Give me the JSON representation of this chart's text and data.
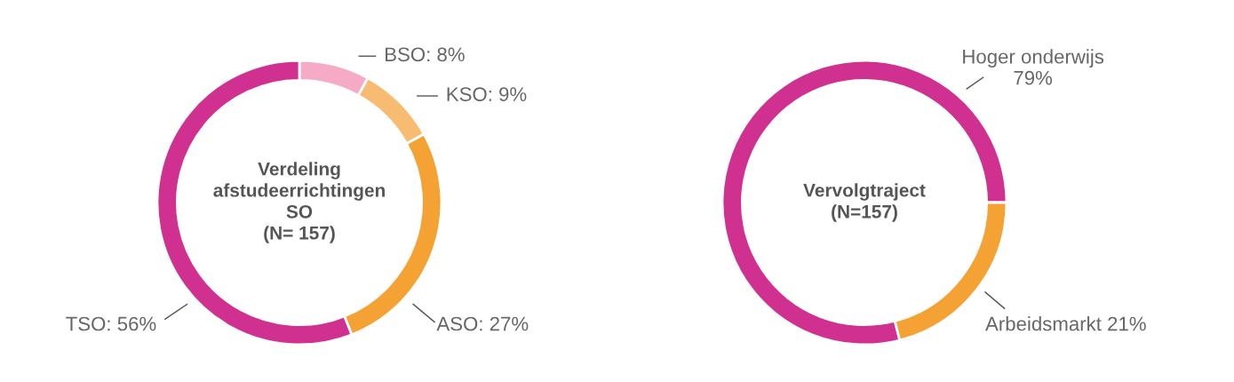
{
  "chart_data": [
    {
      "type": "donut",
      "title": "Verdeling\nafstudeerrichtingen\nSO\n(N= 157)",
      "categories": [
        "BSO",
        "KSO",
        "ASO",
        "TSO"
      ],
      "values": [
        8,
        9,
        27,
        56
      ],
      "colors": [
        "#f5aac6",
        "#f8bb72",
        "#f4a233",
        "#d0308f"
      ],
      "value_labels": [
        "8%",
        "9%",
        "27%",
        "56%"
      ]
    },
    {
      "type": "donut",
      "title": "Vervolgtraject\n(N=157)",
      "categories": [
        "Hoger onderwijs",
        "Arbeidsmarkt"
      ],
      "values": [
        79,
        21
      ],
      "colors": [
        "#d0308f",
        "#f4a233"
      ],
      "value_labels": [
        "79%",
        "21%"
      ]
    }
  ]
}
